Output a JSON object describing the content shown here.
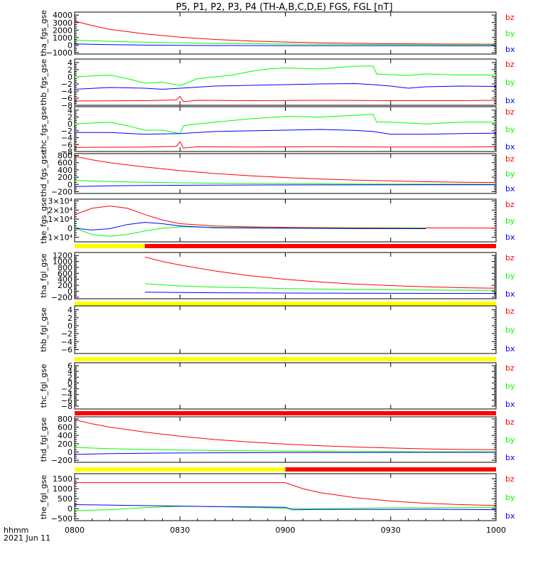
{
  "title": "P5, P1, P2, P3, P4 (TH-A,B,C,D,E) FGS, FGL [nT]",
  "x_axis": {
    "label_line1": "hhmm",
    "label_line2": "2021 Jun 11",
    "ticks": [
      "0800",
      "0830",
      "0900",
      "0930",
      "1000"
    ],
    "tick_minutes": [
      0,
      30,
      60,
      90,
      120
    ],
    "range_minutes": [
      0,
      120
    ]
  },
  "colors": {
    "bx": "#0000ff",
    "by": "#00ff00",
    "bz": "#ff0000",
    "status_yellow": "#ffff00",
    "status_red": "#ff0000"
  },
  "chart_data": [
    {
      "type": "line",
      "ylabel": "tha_fgs_gse",
      "ylim": [
        -1200,
        4400
      ],
      "ytick_values": [
        -1000,
        0,
        1000,
        2000,
        3000,
        4000
      ],
      "ytick_labels": [
        "−1000",
        "0",
        "1000",
        "2000",
        "3000",
        "4000"
      ],
      "legend": [
        "bz",
        "by",
        "bx"
      ],
      "x_minutes": [
        0,
        120
      ],
      "series": [
        {
          "name": "bz",
          "x": [
            0,
            5,
            10,
            20,
            30,
            40,
            50,
            60,
            70,
            80,
            90,
            100,
            110,
            120
          ],
          "values": [
            3200,
            2600,
            2100,
            1500,
            1050,
            750,
            550,
            400,
            300,
            230,
            180,
            150,
            130,
            120
          ]
        },
        {
          "name": "by",
          "x": [
            0,
            10,
            20,
            30,
            40,
            60,
            80,
            100,
            120
          ],
          "values": [
            650,
            500,
            380,
            300,
            220,
            130,
            80,
            50,
            40
          ]
        },
        {
          "name": "bx",
          "x": [
            0,
            10,
            20,
            30,
            40,
            60,
            80,
            100,
            120
          ],
          "values": [
            150,
            60,
            0,
            -40,
            -60,
            -80,
            -90,
            -90,
            -95
          ]
        }
      ]
    },
    {
      "type": "line",
      "ylabel": "thb_fgs_gse",
      "ylim": [
        -8,
        5
      ],
      "ytick_values": [
        -8,
        -6,
        -4,
        -2,
        0,
        2,
        4
      ],
      "ytick_labels": [
        "−8",
        "−6",
        "−4",
        "−2",
        "0",
        "2",
        "4"
      ],
      "legend": [
        "bz",
        "by",
        "bx"
      ],
      "x_minutes": [
        0,
        120
      ],
      "series": [
        {
          "name": "by",
          "x": [
            0,
            10,
            15,
            20,
            25,
            30,
            35,
            40,
            45,
            50,
            55,
            60,
            70,
            80,
            85,
            86,
            90,
            95,
            100,
            110,
            120
          ],
          "values": [
            0,
            0.5,
            -0.5,
            -1.8,
            -1.5,
            -2.5,
            -0.5,
            0,
            0.5,
            1.5,
            2.2,
            2.5,
            2.2,
            3,
            3,
            0.8,
            0.6,
            0.4,
            0.8,
            0.5,
            0.5
          ]
        },
        {
          "name": "bx",
          "x": [
            0,
            10,
            20,
            25,
            30,
            40,
            50,
            60,
            70,
            80,
            85,
            90,
            95,
            100,
            110,
            120
          ],
          "values": [
            -3.5,
            -3,
            -3.2,
            -3.5,
            -3.2,
            -2.6,
            -2.4,
            -2.2,
            -2,
            -1.9,
            -2.2,
            -2.6,
            -3.2,
            -2.8,
            -2.6,
            -2.7
          ]
        },
        {
          "name": "bz",
          "x": [
            0,
            20,
            29,
            30,
            31,
            35,
            50,
            70,
            90,
            110,
            120
          ],
          "values": [
            -6.8,
            -6.7,
            -6.5,
            -5.5,
            -7,
            -6.6,
            -6.7,
            -6.6,
            -6.7,
            -6.7,
            -6.6
          ]
        }
      ]
    },
    {
      "type": "line",
      "ylabel": "thc_fgs_gse",
      "ylim": [
        -8,
        5
      ],
      "ytick_values": [
        -8,
        -6,
        -4,
        -2,
        0,
        2,
        4
      ],
      "ytick_labels": [
        "−8",
        "−6",
        "−4",
        "−2",
        "0",
        "2",
        "4"
      ],
      "legend": [
        "bz",
        "by",
        "bx"
      ],
      "x_minutes": [
        0,
        120
      ],
      "series": [
        {
          "name": "by",
          "x": [
            0,
            10,
            15,
            20,
            25,
            30,
            31,
            35,
            40,
            50,
            60,
            70,
            80,
            85,
            86,
            90,
            100,
            110,
            120
          ],
          "values": [
            0,
            0.5,
            -0.5,
            -1.8,
            -1.8,
            -2.8,
            -0.5,
            0,
            0.5,
            1.5,
            2.2,
            2,
            2.5,
            2.8,
            0.5,
            0.5,
            0,
            0.5,
            0.5
          ]
        },
        {
          "name": "bx",
          "x": [
            0,
            10,
            20,
            30,
            40,
            50,
            60,
            70,
            80,
            85,
            90,
            100,
            110,
            120
          ],
          "values": [
            -2.5,
            -2.5,
            -3,
            -2.8,
            -2.2,
            -2,
            -1.8,
            -1.6,
            -1.9,
            -2.2,
            -3,
            -3,
            -2.8,
            -2.7
          ]
        },
        {
          "name": "bz",
          "x": [
            0,
            20,
            29,
            30,
            31,
            35,
            50,
            70,
            90,
            110,
            120
          ],
          "values": [
            -6.8,
            -6.7,
            -6.5,
            -5.2,
            -7,
            -6.6,
            -6.7,
            -6.6,
            -6.7,
            -6.7,
            -6.6
          ]
        }
      ]
    },
    {
      "type": "line",
      "ylabel": "thd_fgs_gse",
      "ylim": [
        -250,
        850
      ],
      "ytick_values": [
        -200,
        0,
        200,
        400,
        600,
        800
      ],
      "ytick_labels": [
        "−200",
        "0",
        "200",
        "400",
        "600",
        "800"
      ],
      "legend": [
        "bz",
        "by",
        "bx"
      ],
      "x_minutes": [
        0,
        120
      ],
      "series": [
        {
          "name": "bz",
          "x": [
            0,
            5,
            10,
            20,
            30,
            40,
            50,
            60,
            70,
            80,
            90,
            100,
            110,
            120
          ],
          "values": [
            780,
            680,
            600,
            480,
            380,
            300,
            240,
            190,
            150,
            120,
            95,
            75,
            60,
            55
          ]
        },
        {
          "name": "by",
          "x": [
            0,
            10,
            20,
            30,
            40,
            60,
            80,
            100,
            120
          ],
          "values": [
            110,
            80,
            60,
            45,
            35,
            20,
            10,
            5,
            5
          ]
        },
        {
          "name": "bx",
          "x": [
            0,
            10,
            20,
            30,
            40,
            60,
            80,
            100,
            120
          ],
          "values": [
            -60,
            -40,
            -30,
            -25,
            -20,
            -15,
            -12,
            -10,
            -10
          ]
        }
      ]
    },
    {
      "type": "line",
      "ylabel": "the_fgs_gse",
      "ylim": [
        -15000,
        32000
      ],
      "ytick_values": [
        -10000,
        0,
        10000,
        20000,
        30000
      ],
      "ytick_labels": [
        "−1×10⁴",
        "0",
        "1×10⁴",
        "2×10⁴",
        "3×10⁴"
      ],
      "legend": [
        "bz",
        "by",
        "bx"
      ],
      "x_minutes": [
        0,
        120
      ],
      "series": [
        {
          "name": "bz",
          "x": [
            0,
            5,
            10,
            15,
            20,
            25,
            30,
            40,
            50,
            60,
            80,
            100,
            120
          ],
          "values": [
            15000,
            22000,
            24500,
            22000,
            15000,
            9000,
            5000,
            2500,
            1500,
            1000,
            500,
            300,
            200
          ]
        },
        {
          "name": "by",
          "x": [
            0,
            5,
            10,
            15,
            20,
            25,
            30,
            40,
            60,
            80,
            100
          ],
          "values": [
            0,
            -7000,
            -9000,
            -7000,
            -3000,
            0,
            1500,
            1000,
            300,
            0,
            0
          ]
        },
        {
          "name": "bx",
          "x": [
            0,
            5,
            10,
            15,
            20,
            25,
            30,
            40,
            60,
            80,
            100
          ],
          "values": [
            0,
            -2000,
            -500,
            4000,
            6500,
            5000,
            2500,
            500,
            0,
            -500,
            -500
          ]
        }
      ]
    },
    {
      "type": "line",
      "ylabel": "tha_fgl_gse",
      "ylim": [
        -250,
        1300
      ],
      "ytick_values": [
        -200,
        0,
        200,
        400,
        600,
        800,
        1000,
        1200
      ],
      "ytick_labels": [
        "−200",
        "0",
        "200",
        "400",
        "600",
        "800",
        "1000",
        "1200"
      ],
      "legend": [
        "bz",
        "by",
        "bx"
      ],
      "x_minutes": [
        0,
        120
      ],
      "series": [
        {
          "name": "bz",
          "x": [
            20,
            25,
            30,
            40,
            50,
            60,
            70,
            80,
            90,
            100,
            110,
            120
          ],
          "values": [
            1150,
            1000,
            880,
            680,
            520,
            400,
            310,
            240,
            190,
            150,
            120,
            100
          ]
        },
        {
          "name": "by",
          "x": [
            20,
            30,
            40,
            60,
            80,
            100,
            120
          ],
          "values": [
            250,
            180,
            140,
            90,
            60,
            40,
            30
          ]
        },
        {
          "name": "bx",
          "x": [
            20,
            30,
            40,
            60,
            80,
            100,
            120
          ],
          "values": [
            -30,
            -40,
            -50,
            -60,
            -65,
            -70,
            -70
          ]
        }
      ],
      "status_bar": [
        {
          "from": 0,
          "to": 20,
          "color": "yellow"
        },
        {
          "from": 20,
          "to": 120,
          "color": "red"
        }
      ]
    },
    {
      "type": "line",
      "ylabel": "thb_fgl_gse",
      "ylim": [
        -7,
        5
      ],
      "ytick_values": [
        -6,
        -4,
        -2,
        0,
        2,
        4
      ],
      "ytick_labels": [
        "−6",
        "−4",
        "−2",
        "0",
        "2",
        "4"
      ],
      "legend": [
        "bz",
        "by",
        "bx"
      ],
      "x_minutes": [
        0,
        120
      ],
      "series": [],
      "status_bar": [
        {
          "from": 0,
          "to": 120,
          "color": "yellow"
        }
      ]
    },
    {
      "type": "line",
      "ylabel": "thc_fgl_gse",
      "ylim": [
        -9,
        7
      ],
      "ytick_values": [
        -8,
        -6,
        -4,
        -2,
        0,
        2,
        4,
        6
      ],
      "ytick_labels": [
        "−8",
        "−6",
        "−4",
        "−2",
        "0",
        "2",
        "4",
        "6"
      ],
      "legend": [
        "bz",
        "by",
        "bx"
      ],
      "x_minutes": [
        0,
        120
      ],
      "series": [],
      "status_bar": [
        {
          "from": 0,
          "to": 120,
          "color": "yellow"
        }
      ]
    },
    {
      "type": "line",
      "ylabel": "thd_fgl_gse",
      "ylim": [
        -250,
        850
      ],
      "ytick_values": [
        -200,
        0,
        200,
        400,
        600,
        800
      ],
      "ytick_labels": [
        "−200",
        "0",
        "200",
        "400",
        "600",
        "800"
      ],
      "legend": [
        "bz",
        "by",
        "bx"
      ],
      "x_minutes": [
        0,
        120
      ],
      "series": [
        {
          "name": "bz",
          "x": [
            0,
            5,
            10,
            20,
            30,
            40,
            50,
            60,
            70,
            80,
            90,
            100,
            110,
            120
          ],
          "values": [
            780,
            680,
            600,
            480,
            380,
            300,
            240,
            190,
            150,
            120,
            95,
            75,
            60,
            55
          ]
        },
        {
          "name": "by",
          "x": [
            0,
            10,
            20,
            30,
            40,
            60,
            80,
            100,
            120
          ],
          "values": [
            110,
            80,
            60,
            45,
            35,
            20,
            10,
            5,
            5
          ]
        },
        {
          "name": "bx",
          "x": [
            0,
            10,
            20,
            30,
            40,
            60,
            80,
            100,
            120
          ],
          "values": [
            -60,
            -40,
            -30,
            -25,
            -20,
            -15,
            -12,
            -10,
            -10
          ]
        }
      ],
      "status_bar": [
        {
          "from": 0,
          "to": 120,
          "color": "red"
        }
      ]
    },
    {
      "type": "line",
      "ylabel": "the_fgl_gse",
      "ylim": [
        -600,
        1750
      ],
      "ytick_values": [
        -500,
        0,
        500,
        1000,
        1500
      ],
      "ytick_labels": [
        "−500",
        "0",
        "500",
        "1000",
        "1500"
      ],
      "legend": [
        "bz",
        "by",
        "bx"
      ],
      "x_minutes": [
        0,
        120
      ],
      "series": [
        {
          "name": "bz",
          "x": [
            0,
            30,
            60,
            65,
            70,
            80,
            90,
            100,
            110,
            120
          ],
          "values": [
            1300,
            1300,
            1300,
            1000,
            800,
            550,
            380,
            270,
            200,
            160
          ]
        },
        {
          "name": "by",
          "x": [
            0,
            10,
            20,
            30,
            40,
            50,
            60,
            70,
            80,
            90,
            100,
            110,
            120
          ],
          "values": [
            -100,
            -50,
            50,
            120,
            100,
            60,
            20,
            0,
            20,
            40,
            40,
            50,
            60
          ]
        },
        {
          "name": "bx",
          "x": [
            0,
            20,
            40,
            60,
            62,
            70,
            80,
            90,
            100,
            110,
            120
          ],
          "values": [
            200,
            150,
            100,
            70,
            -60,
            -40,
            -40,
            -40,
            -30,
            -40,
            -50
          ]
        }
      ],
      "status_bar": [
        {
          "from": 0,
          "to": 60,
          "color": "yellow"
        },
        {
          "from": 60,
          "to": 120,
          "color": "red"
        }
      ]
    }
  ]
}
